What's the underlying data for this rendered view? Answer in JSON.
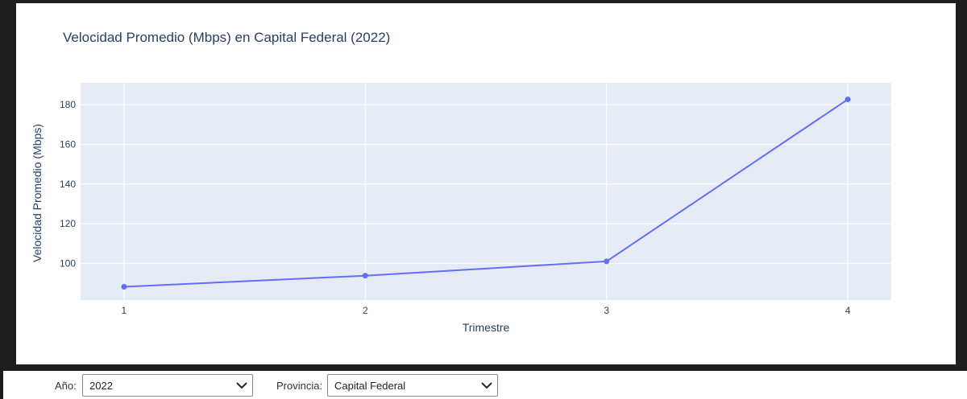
{
  "chart_data": {
    "type": "line",
    "title": "Velocidad Promedio (Mbps) en Capital Federal (2022)",
    "xlabel": "Trimestre",
    "ylabel": "Velocidad Promedio (Mbps)",
    "x": [
      1,
      2,
      3,
      4
    ],
    "series": [
      {
        "values": [
          88.2,
          93.8,
          101.0,
          182.7
        ]
      }
    ],
    "xticks": [
      "1",
      "2",
      "3",
      "4"
    ],
    "yticks": [
      100,
      120,
      140,
      160,
      180
    ],
    "xlim": [
      0.82,
      4.18
    ],
    "ylim": [
      81.5,
      191
    ],
    "grid": true,
    "colors": {
      "line": "#636efa",
      "plot_bg": "#e5ecf6",
      "grid": "#ffffff",
      "text": "#2a3f5f"
    }
  },
  "controls": {
    "year_label": "Año:",
    "year_value": "2022",
    "province_label": "Provincia:",
    "province_value": "Capital Federal"
  }
}
